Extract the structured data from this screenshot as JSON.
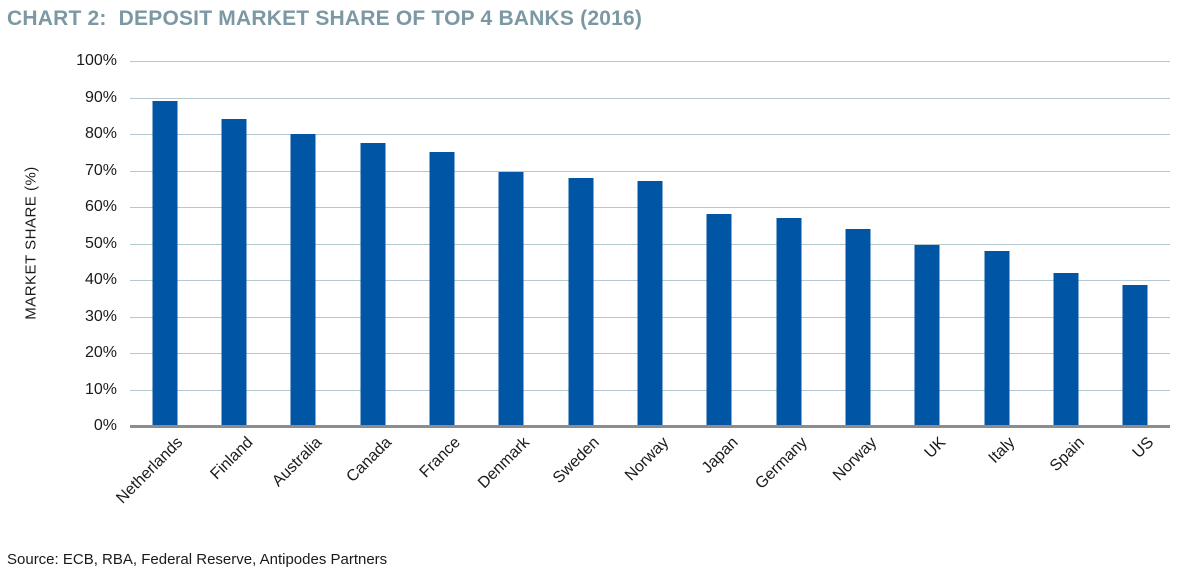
{
  "title": "CHART 2:  DEPOSIT MARKET SHARE OF TOP 4 BANKS (2016)",
  "source": "Source: ECB, RBA, Federal Reserve, Antipodes Partners",
  "colors": {
    "title": "#7C98A3",
    "bar": "#0056A5",
    "gridline": "#B5C8CD",
    "axis_line": "#8C8C8C",
    "text": "#1A1A1A"
  },
  "chart_data": {
    "type": "bar",
    "title": "CHART 2:  DEPOSIT MARKET SHARE OF TOP 4 BANKS (2016)",
    "categories": [
      "Netherlands",
      "Finland",
      "Australia",
      "Canada",
      "France",
      "Denmark",
      "Sweden",
      "Norway",
      "Japan",
      "Germany",
      "Norway",
      "UK",
      "Italy",
      "Spain",
      "US"
    ],
    "values": [
      89,
      84,
      80,
      77.5,
      75,
      69.5,
      68,
      67,
      58,
      57,
      54,
      49.5,
      48,
      42,
      38.5
    ],
    "xlabel": "",
    "ylabel": "MARKET SHARE (%)",
    "ylim": [
      0,
      100
    ],
    "ytick_step": 10,
    "ytick_suffix": "%",
    "grid": true,
    "legend_position": "none"
  }
}
